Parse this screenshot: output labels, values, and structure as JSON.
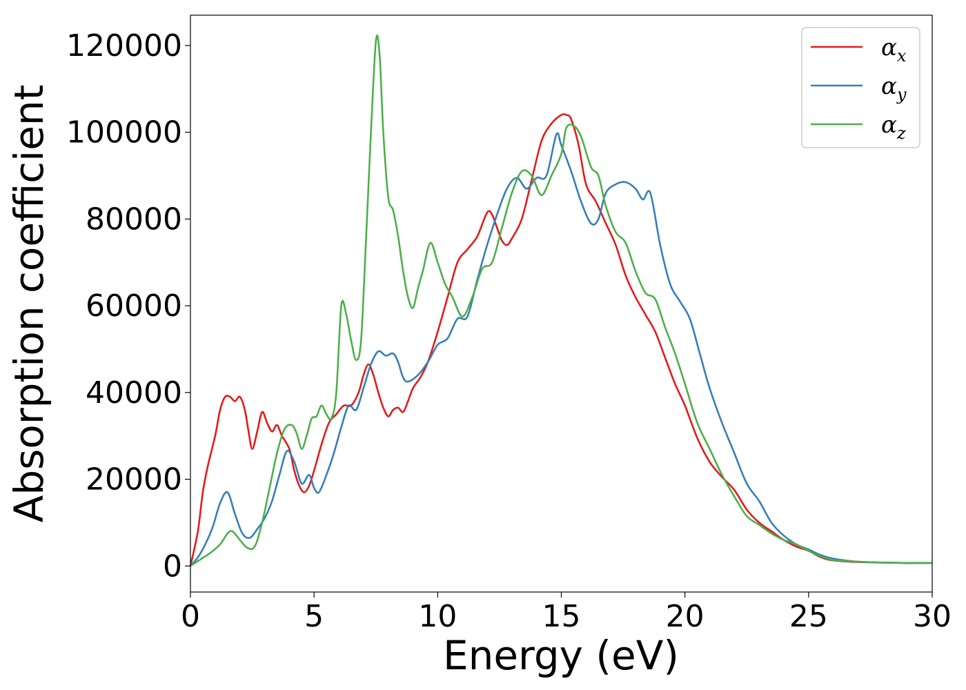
{
  "chart_data": {
    "type": "line",
    "xlabel": "Energy (eV)",
    "ylabel": "Absorption coefficient",
    "xlim": [
      0,
      30
    ],
    "ylim": [
      -6000,
      127000
    ],
    "xticks": [
      0,
      5,
      10,
      15,
      20,
      25,
      30
    ],
    "yticks": [
      0,
      20000,
      40000,
      60000,
      80000,
      100000,
      120000
    ],
    "grid": false,
    "legend_position": "top-right",
    "series": [
      {
        "name": "αx",
        "symbol": "α",
        "subscript": "x",
        "color": "#e41a1c",
        "x": [
          0,
          0.3,
          0.5,
          0.7,
          1.0,
          1.2,
          1.4,
          1.6,
          1.8,
          2.0,
          2.2,
          2.35,
          2.5,
          2.7,
          2.9,
          3.1,
          3.3,
          3.5,
          3.7,
          4.0,
          4.2,
          4.4,
          4.6,
          4.8,
          5.0,
          5.3,
          5.6,
          5.9,
          6.2,
          6.5,
          6.8,
          7.0,
          7.2,
          7.4,
          7.6,
          7.8,
          8.0,
          8.2,
          8.4,
          8.6,
          8.8,
          9.0,
          9.3,
          9.6,
          10.0,
          10.4,
          10.8,
          11.2,
          11.6,
          12.0,
          12.2,
          12.4,
          12.6,
          12.8,
          13.0,
          13.4,
          13.8,
          14.2,
          14.6,
          15.0,
          15.2,
          15.4,
          15.7,
          16.0,
          16.4,
          16.8,
          17.2,
          17.6,
          18.0,
          18.4,
          18.8,
          19.2,
          19.6,
          20.0,
          20.5,
          21.0,
          21.5,
          22.0,
          22.5,
          23.0,
          23.5,
          24.0,
          24.5,
          25.0,
          25.5,
          26.0,
          27.0,
          28.0,
          29.0,
          30.0
        ],
        "y": [
          0,
          8000,
          17000,
          23000,
          30000,
          36000,
          39000,
          39000,
          38000,
          39000,
          36000,
          31000,
          27000,
          31000,
          35500,
          33000,
          31000,
          32500,
          30000,
          27000,
          22000,
          18500,
          17000,
          18500,
          22000,
          28000,
          33000,
          35000,
          37000,
          37000,
          40000,
          44000,
          46500,
          44000,
          40000,
          36500,
          34500,
          36000,
          36500,
          35500,
          38000,
          41000,
          43500,
          47000,
          54000,
          62000,
          70000,
          73000,
          76000,
          81500,
          81000,
          78000,
          75000,
          74000,
          75500,
          80000,
          89000,
          98000,
          102000,
          104000,
          104000,
          103000,
          97000,
          88000,
          84000,
          79000,
          74000,
          67000,
          62000,
          58000,
          54000,
          48000,
          42000,
          37000,
          29500,
          24000,
          20500,
          17500,
          13000,
          10000,
          8000,
          6000,
          4500,
          3500,
          2000,
          1300,
          900,
          800,
          700,
          700
        ]
      },
      {
        "name": "αy",
        "symbol": "α",
        "subscript": "y",
        "color": "#377eb8",
        "x": [
          0,
          0.3,
          0.6,
          0.9,
          1.2,
          1.5,
          1.8,
          2.1,
          2.4,
          2.7,
          3.0,
          3.3,
          3.6,
          3.9,
          4.2,
          4.5,
          4.8,
          5.0,
          5.2,
          5.5,
          5.8,
          6.1,
          6.4,
          6.7,
          7.0,
          7.3,
          7.6,
          7.9,
          8.2,
          8.4,
          8.6,
          8.8,
          9.2,
          9.6,
          10.0,
          10.4,
          10.8,
          11.2,
          11.6,
          12.0,
          12.4,
          12.8,
          13.2,
          13.6,
          14.0,
          14.4,
          14.8,
          15.0,
          15.4,
          15.8,
          16.2,
          16.5,
          16.8,
          17.2,
          17.6,
          18.0,
          18.3,
          18.6,
          19.0,
          19.4,
          19.8,
          20.2,
          20.6,
          21.0,
          21.5,
          22.0,
          22.5,
          23.0,
          23.5,
          24.0,
          24.5,
          25.0,
          25.5,
          26.0,
          27.0,
          28.0,
          29.0,
          30.0
        ],
        "y": [
          0,
          2000,
          5000,
          9000,
          14500,
          17000,
          12000,
          7500,
          6500,
          8500,
          11000,
          15000,
          21000,
          26500,
          24000,
          19000,
          21000,
          18000,
          17000,
          21000,
          26000,
          32000,
          37000,
          36000,
          41000,
          46500,
          49500,
          48500,
          49000,
          47000,
          43500,
          42500,
          44000,
          47000,
          51000,
          52500,
          57000,
          57500,
          66000,
          74000,
          81000,
          87000,
          89500,
          87000,
          89500,
          90000,
          99500,
          97000,
          91000,
          84000,
          79000,
          80000,
          86000,
          88000,
          88500,
          87000,
          84500,
          86000,
          74000,
          65000,
          61000,
          57000,
          49000,
          41000,
          33000,
          26000,
          19000,
          15000,
          10000,
          7000,
          5000,
          3800,
          2500,
          1700,
          1000,
          800,
          700,
          700
        ]
      },
      {
        "name": "αz",
        "symbol": "α",
        "subscript": "z",
        "color": "#4daf4a",
        "x": [
          0,
          0.4,
          0.8,
          1.2,
          1.5,
          1.7,
          2.0,
          2.3,
          2.6,
          2.9,
          3.2,
          3.5,
          3.8,
          4.1,
          4.3,
          4.5,
          4.7,
          4.9,
          5.1,
          5.3,
          5.5,
          5.7,
          5.9,
          6.1,
          6.3,
          6.5,
          6.7,
          6.9,
          7.1,
          7.3,
          7.5,
          7.65,
          7.8,
          8.0,
          8.2,
          8.4,
          8.6,
          8.8,
          9.0,
          9.2,
          9.4,
          9.7,
          10.0,
          10.3,
          10.6,
          11.0,
          11.4,
          11.8,
          12.2,
          12.6,
          13.0,
          13.4,
          13.8,
          14.2,
          14.6,
          15.0,
          15.2,
          15.5,
          15.8,
          16.2,
          16.5,
          16.8,
          17.2,
          17.6,
          18.0,
          18.4,
          18.8,
          19.2,
          19.6,
          20.0,
          20.5,
          21.0,
          21.5,
          22.0,
          22.5,
          23.0,
          23.5,
          24.0,
          24.5,
          25.0,
          25.5,
          26.0,
          27.0,
          28.0,
          29.0,
          30.0
        ],
        "y": [
          0,
          1500,
          3000,
          5000,
          7500,
          8000,
          6000,
          4200,
          4500,
          10000,
          18000,
          26000,
          31500,
          32500,
          30500,
          27000,
          30000,
          34000,
          34500,
          37000,
          35000,
          34000,
          40000,
          60000,
          58000,
          52000,
          47500,
          52000,
          75000,
          100000,
          121000,
          118000,
          100000,
          85000,
          82000,
          76000,
          68000,
          62000,
          59500,
          64000,
          68000,
          74500,
          70000,
          65000,
          62000,
          57500,
          62000,
          68500,
          70000,
          78000,
          86000,
          91000,
          90000,
          85500,
          90000,
          95000,
          101000,
          101500,
          99000,
          92000,
          90000,
          83000,
          77000,
          74500,
          68000,
          63000,
          61500,
          55000,
          49000,
          42000,
          33000,
          27000,
          21000,
          16000,
          11500,
          9500,
          7500,
          6000,
          5000,
          3500,
          2200,
          1400,
          1000,
          800,
          700,
          700
        ]
      }
    ]
  }
}
